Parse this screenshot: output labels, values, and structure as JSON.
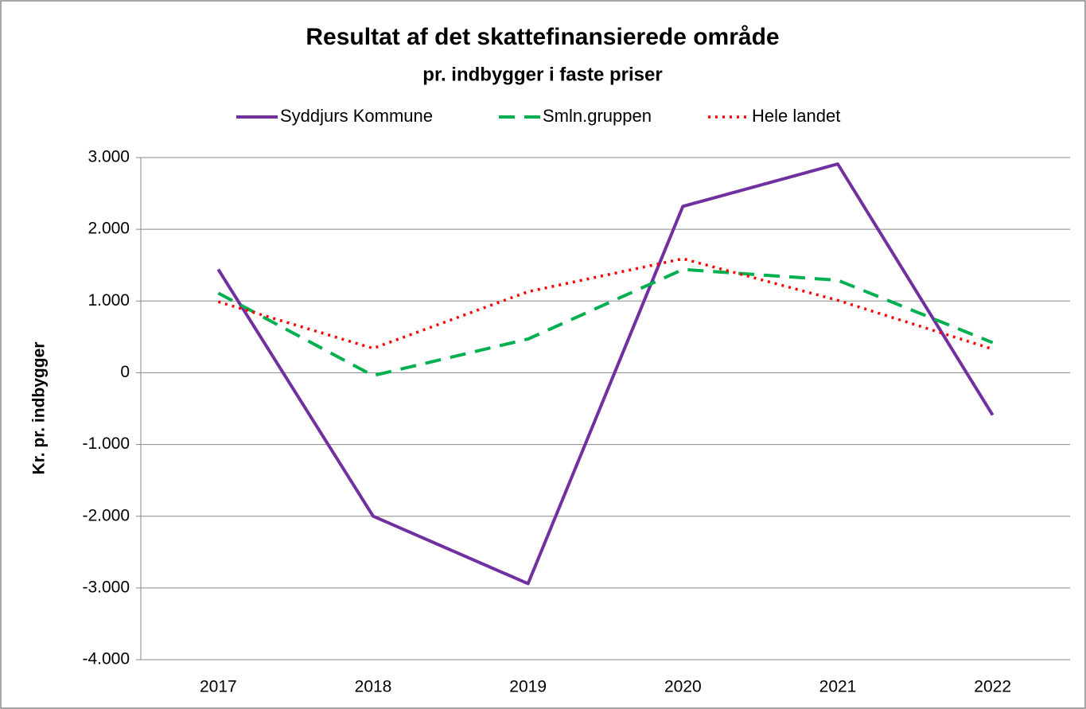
{
  "chart_data": {
    "type": "line",
    "title": "Resultat af det skattefinansierede område",
    "subtitle": "pr. indbygger i faste priser",
    "y_label": "Kr. pr. indbygger",
    "categories": [
      "2017",
      "2018",
      "2019",
      "2020",
      "2021",
      "2022"
    ],
    "series": [
      {
        "name": "Syddjurs Kommune",
        "color": "#7030a0",
        "line_style": "solid",
        "values": [
          1440,
          -2000,
          -2940,
          2320,
          2910,
          -590
        ]
      },
      {
        "name": "Smln.gruppen",
        "color": "#00b050",
        "line_style": "dashed",
        "values": [
          1110,
          -40,
          470,
          1440,
          1290,
          420
        ]
      },
      {
        "name": "Hele landet",
        "color": "#ff0000",
        "line_style": "dotted",
        "values": [
          990,
          340,
          1130,
          1590,
          1010,
          330
        ]
      }
    ],
    "ylim": [
      -4000,
      3000
    ],
    "yticks": [
      {
        "value": -4000,
        "label": "-4.000"
      },
      {
        "value": -3000,
        "label": "-3.000"
      },
      {
        "value": -2000,
        "label": "-2.000"
      },
      {
        "value": -1000,
        "label": "-1.000"
      },
      0,
      {
        "value": 1000,
        "label": "1.000"
      },
      {
        "value": 2000,
        "label": "2.000"
      },
      {
        "value": 3000,
        "label": "3.000"
      }
    ],
    "grid": true,
    "legend": "top"
  }
}
